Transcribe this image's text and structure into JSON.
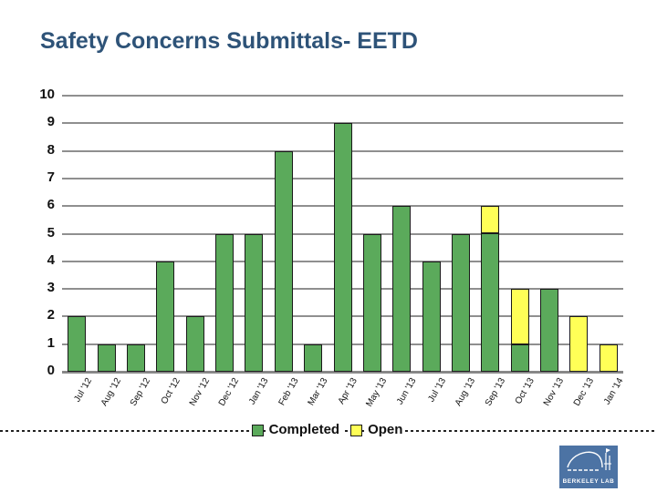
{
  "title": "Safety Concerns Submittals- EETD",
  "colors": {
    "title_text": "#2E5378",
    "completed_green": "#5BAA5B",
    "open_yellow": "#FFFF57",
    "bar_border": "#1A1A1A",
    "gridline_gray": "#8F8F8F",
    "logo_blue": "#4C73A4"
  },
  "chart_data": {
    "type": "bar",
    "stacked": true,
    "title": "Safety Concerns Submittals- EETD",
    "xlabel": "",
    "ylabel": "",
    "ylim": [
      0,
      10
    ],
    "ytick_interval": 1,
    "yticks": [
      "0",
      "1",
      "2",
      "3",
      "4",
      "5",
      "6",
      "7",
      "8",
      "9",
      "10"
    ],
    "grid": true,
    "legend_position": "bottom-center",
    "categories": [
      "Jul '12",
      "Aug '12",
      "Sep '12",
      "Oct '12",
      "Nov '12",
      "Dec '12",
      "Jan '13",
      "Feb '13",
      "Mar '13",
      "Apr '13",
      "May '13",
      "Jun '13",
      "Jul '13",
      "Aug '13",
      "Sep '13",
      "Oct '13",
      "Nov '13",
      "Dec '13",
      "Jan '14"
    ],
    "series": [
      {
        "name": "Completed",
        "color": "#5BAA5B",
        "values": [
          2,
          1,
          1,
          4,
          2,
          5,
          5,
          8,
          1,
          9,
          5,
          6,
          4,
          5,
          5,
          1,
          3,
          0,
          0
        ]
      },
      {
        "name": "Open",
        "color": "#FFFF57",
        "values": [
          0,
          0,
          0,
          0,
          0,
          0,
          0,
          0,
          0,
          0,
          0,
          0,
          0,
          0,
          1,
          2,
          0,
          2,
          1
        ]
      }
    ]
  },
  "legend": {
    "completed_label": "Completed",
    "open_label": "Open"
  },
  "logo": {
    "text": "BERKELEY LAB"
  }
}
